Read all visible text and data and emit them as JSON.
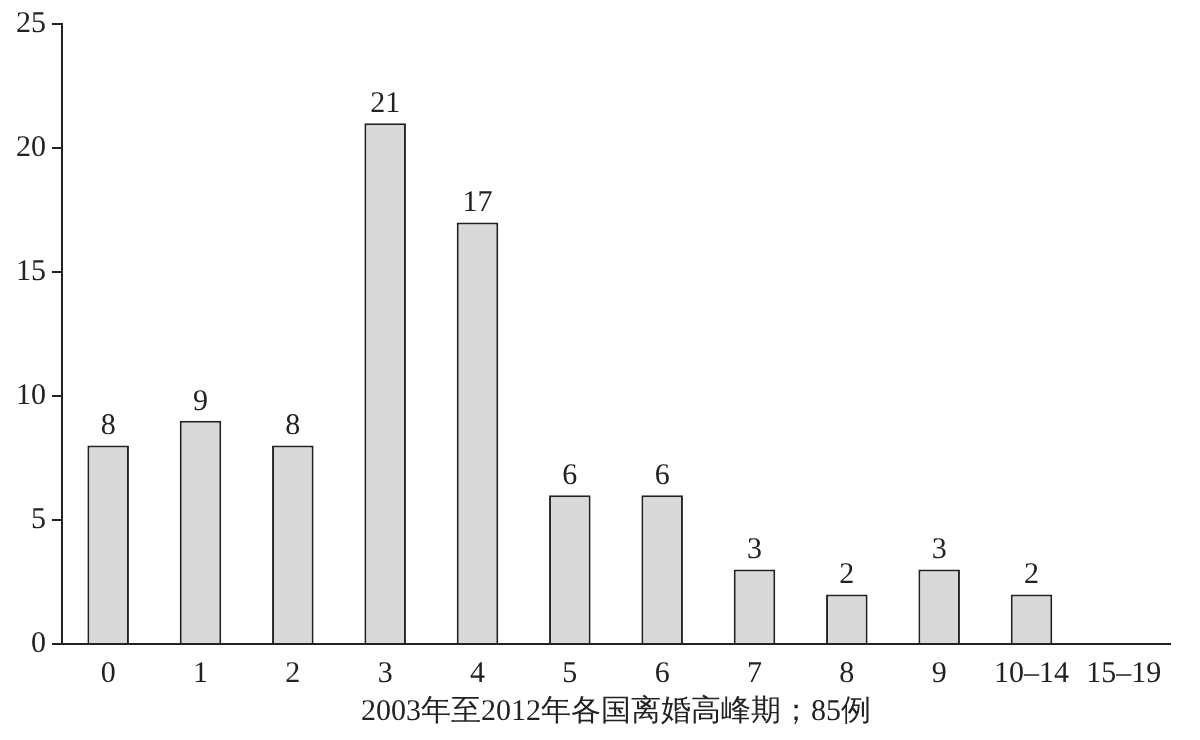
{
  "chart_data": {
    "type": "bar",
    "xlabel": "2003年至2012年各国离婚高峰期；85例",
    "categories": [
      "0",
      "1",
      "2",
      "3",
      "4",
      "5",
      "6",
      "7",
      "8",
      "9",
      "10–14",
      "15–19"
    ],
    "values": [
      8,
      9,
      8,
      21,
      17,
      6,
      6,
      3,
      2,
      3,
      2,
      0
    ],
    "value_labels": [
      "8",
      "9",
      "8",
      "21",
      "17",
      "6",
      "6",
      "3",
      "2",
      "3",
      "2",
      null
    ],
    "color": "#d9d9d9",
    "ylim": [
      0,
      25
    ],
    "yticks": [
      0,
      5,
      10,
      15,
      20,
      25
    ],
    "grid": false,
    "legend": false
  }
}
